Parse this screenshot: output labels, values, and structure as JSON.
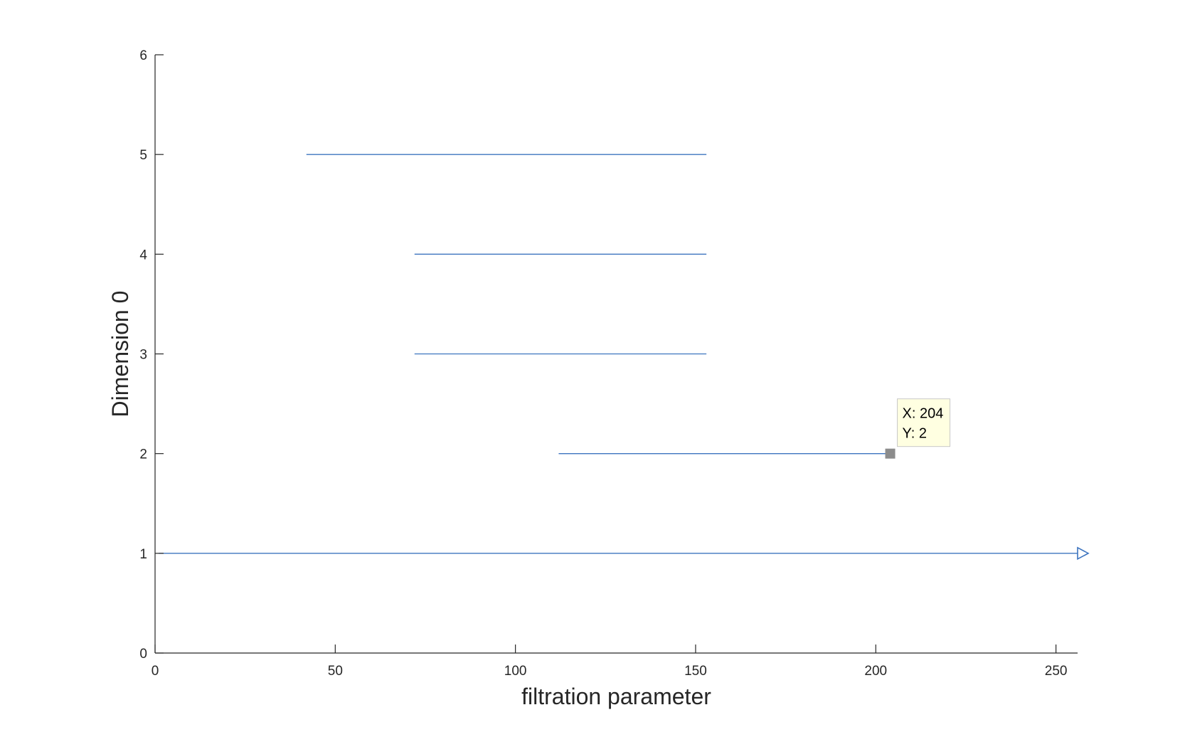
{
  "colors": {
    "series": "#3d74bf",
    "axis": "#262626",
    "marker": "#8c8c8c",
    "tooltip_bg": "#ffffe1",
    "tooltip_border": "#c8c8c8"
  },
  "chart_data": {
    "type": "barcode",
    "xlabel": "filtration parameter",
    "ylabel": "Dimension 0",
    "xlim": [
      0,
      256
    ],
    "ylim": [
      0,
      6
    ],
    "xticks": [
      0,
      50,
      100,
      150,
      200,
      250
    ],
    "yticks": [
      0,
      1,
      2,
      3,
      4,
      5,
      6
    ],
    "grid": false,
    "bars": [
      {
        "y": 1,
        "x_start": 1,
        "x_end": 256,
        "infinite": true
      },
      {
        "y": 2,
        "x_start": 112,
        "x_end": 204,
        "infinite": false
      },
      {
        "y": 3,
        "x_start": 72,
        "x_end": 153,
        "infinite": false
      },
      {
        "y": 4,
        "x_start": 72,
        "x_end": 153,
        "infinite": false
      },
      {
        "y": 5,
        "x_start": 42,
        "x_end": 153,
        "infinite": false
      }
    ],
    "datatip": {
      "x": 204,
      "y": 2,
      "line1": "X: 204",
      "line2": "Y: 2"
    }
  }
}
